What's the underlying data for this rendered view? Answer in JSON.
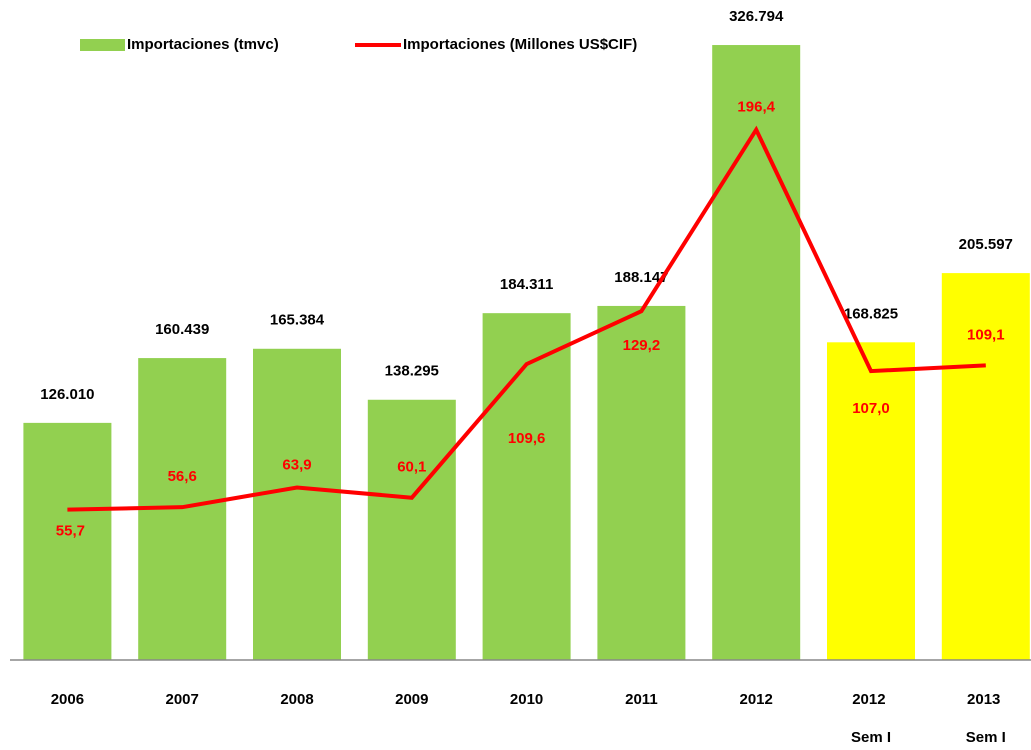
{
  "chart_data": {
    "type": "bar",
    "categories": [
      "2006",
      "2007",
      "2008",
      "2009",
      "2010",
      "2011",
      "2012",
      "2012 Sem I",
      "2013 Sem I"
    ],
    "series": [
      {
        "name": "Importaciones (tmvc)",
        "type": "bar",
        "color": "#92d050",
        "colors": [
          "#92d050",
          "#92d050",
          "#92d050",
          "#92d050",
          "#92d050",
          "#92d050",
          "#92d050",
          "#ffff00",
          "#ffff00"
        ],
        "values": [
          126010,
          160439,
          165384,
          138295,
          184311,
          188147,
          326794,
          168825,
          205597
        ],
        "value_labels": [
          "126.010",
          "160.439",
          "165.384",
          "138.295",
          "184.311",
          "188.147",
          "326.794",
          "168.825",
          "205.597"
        ]
      },
      {
        "name": "Importaciones (Millones US$CIF)",
        "type": "line",
        "axis": "y2",
        "color": "#ff0000",
        "values": [
          55.7,
          56.6,
          63.9,
          60.1,
          109.6,
          129.2,
          196.4,
          107.0,
          109.1
        ],
        "value_labels": [
          "55,7",
          "56,6",
          "63,9",
          "60,1",
          "109,6",
          "129,2",
          "196,4",
          "107,0",
          "109,1"
        ]
      }
    ],
    "ylim": [
      0,
      330000
    ],
    "y2lim": [
      0,
      230
    ],
    "legend": "top"
  }
}
